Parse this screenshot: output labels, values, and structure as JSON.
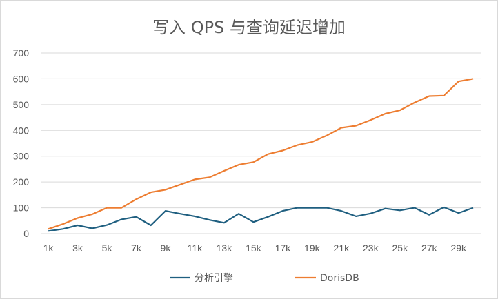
{
  "chart_data": {
    "type": "line",
    "title": "写入 QPS 与查询延迟增加",
    "xlabel": "",
    "ylabel": "",
    "x": [
      "1k",
      "2k",
      "3k",
      "4k",
      "5k",
      "6k",
      "7k",
      "8k",
      "9k",
      "10k",
      "11k",
      "12k",
      "13k",
      "14k",
      "15k",
      "16k",
      "17k",
      "18k",
      "19k",
      "20k",
      "21k",
      "22k",
      "23k",
      "24k",
      "25k",
      "26k",
      "27k",
      "28k",
      "29k",
      "30k"
    ],
    "x_tick_labels": [
      "1k",
      "3k",
      "5k",
      "7k",
      "9k",
      "11k",
      "13k",
      "15k",
      "17k",
      "19k",
      "21k",
      "23k",
      "25k",
      "27k",
      "29k"
    ],
    "ylim": [
      0,
      700
    ],
    "y_ticks": [
      0,
      100,
      200,
      300,
      400,
      500,
      600,
      700
    ],
    "grid": true,
    "legend_position": "bottom",
    "series": [
      {
        "name": "分析引擎",
        "color": "#1f5f80",
        "values": [
          10,
          18,
          32,
          20,
          33,
          55,
          65,
          32,
          88,
          77,
          67,
          53,
          42,
          77,
          45,
          65,
          88,
          100,
          100,
          100,
          88,
          67,
          78,
          97,
          90,
          100,
          73,
          102,
          80,
          100
        ]
      },
      {
        "name": "DorisDB",
        "color": "#ed7d31",
        "values": [
          18,
          37,
          60,
          75,
          100,
          100,
          133,
          160,
          170,
          190,
          210,
          218,
          243,
          267,
          277,
          308,
          322,
          343,
          355,
          380,
          410,
          418,
          440,
          465,
          478,
          508,
          533,
          535,
          590,
          600
        ]
      }
    ]
  }
}
